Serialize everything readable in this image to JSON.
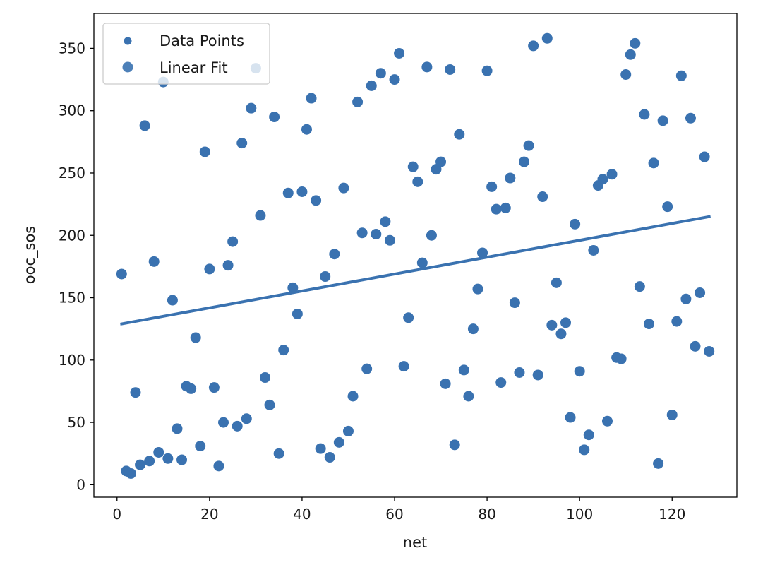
{
  "chart_data": {
    "type": "scatter",
    "title": "",
    "xlabel": "net",
    "ylabel": "ooc_sos",
    "xlim": [
      -5,
      134
    ],
    "ylim": [
      -10,
      378
    ],
    "x_ticks": [
      0,
      20,
      40,
      60,
      80,
      100,
      120
    ],
    "y_ticks": [
      0,
      50,
      100,
      150,
      200,
      250,
      300,
      350
    ],
    "grid": false,
    "legend_position": "top-left",
    "colors": {
      "points": "#3a72b0",
      "fit": "#3a72b0",
      "axes": "#000000",
      "legend_border": "#cccccc"
    },
    "series": [
      {
        "name": "Data Points",
        "kind": "scatter",
        "points": [
          [
            1,
            169
          ],
          [
            2,
            11
          ],
          [
            3,
            9
          ],
          [
            4,
            74
          ],
          [
            5,
            16
          ],
          [
            6,
            288
          ],
          [
            7,
            19
          ],
          [
            8,
            179
          ],
          [
            9,
            26
          ],
          [
            10,
            323
          ],
          [
            11,
            21
          ],
          [
            12,
            148
          ],
          [
            13,
            45
          ],
          [
            14,
            20
          ],
          [
            15,
            79
          ],
          [
            16,
            77
          ],
          [
            17,
            118
          ],
          [
            18,
            31
          ],
          [
            19,
            267
          ],
          [
            20,
            173
          ],
          [
            21,
            78
          ],
          [
            22,
            15
          ],
          [
            23,
            50
          ],
          [
            24,
            176
          ],
          [
            25,
            195
          ],
          [
            26,
            47
          ],
          [
            27,
            274
          ],
          [
            28,
            53
          ],
          [
            29,
            302
          ],
          [
            30,
            334
          ],
          [
            31,
            216
          ],
          [
            32,
            86
          ],
          [
            33,
            64
          ],
          [
            34,
            295
          ],
          [
            35,
            25
          ],
          [
            36,
            108
          ],
          [
            37,
            234
          ],
          [
            38,
            158
          ],
          [
            39,
            137
          ],
          [
            40,
            235
          ],
          [
            41,
            285
          ],
          [
            42,
            310
          ],
          [
            43,
            228
          ],
          [
            44,
            29
          ],
          [
            45,
            167
          ],
          [
            46,
            22
          ],
          [
            47,
            185
          ],
          [
            48,
            34
          ],
          [
            49,
            238
          ],
          [
            50,
            43
          ],
          [
            51,
            71
          ],
          [
            52,
            307
          ],
          [
            53,
            202
          ],
          [
            54,
            93
          ],
          [
            55,
            320
          ],
          [
            56,
            201
          ],
          [
            57,
            330
          ],
          [
            58,
            211
          ],
          [
            59,
            196
          ],
          [
            60,
            325
          ],
          [
            61,
            346
          ],
          [
            62,
            95
          ],
          [
            63,
            134
          ],
          [
            64,
            255
          ],
          [
            65,
            243
          ],
          [
            66,
            178
          ],
          [
            67,
            335
          ],
          [
            68,
            200
          ],
          [
            69,
            253
          ],
          [
            70,
            259
          ],
          [
            71,
            81
          ],
          [
            72,
            333
          ],
          [
            73,
            32
          ],
          [
            74,
            281
          ],
          [
            75,
            92
          ],
          [
            76,
            71
          ],
          [
            77,
            125
          ],
          [
            78,
            157
          ],
          [
            79,
            186
          ],
          [
            80,
            332
          ],
          [
            81,
            239
          ],
          [
            82,
            221
          ],
          [
            83,
            82
          ],
          [
            84,
            222
          ],
          [
            85,
            246
          ],
          [
            86,
            146
          ],
          [
            87,
            90
          ],
          [
            88,
            259
          ],
          [
            89,
            272
          ],
          [
            90,
            352
          ],
          [
            91,
            88
          ],
          [
            92,
            231
          ],
          [
            93,
            358
          ],
          [
            94,
            128
          ],
          [
            95,
            162
          ],
          [
            96,
            121
          ],
          [
            97,
            130
          ],
          [
            98,
            54
          ],
          [
            99,
            209
          ],
          [
            100,
            91
          ],
          [
            101,
            28
          ],
          [
            102,
            40
          ],
          [
            103,
            188
          ],
          [
            104,
            240
          ],
          [
            105,
            245
          ],
          [
            106,
            51
          ],
          [
            107,
            249
          ],
          [
            108,
            102
          ],
          [
            109,
            101
          ],
          [
            110,
            329
          ],
          [
            111,
            345
          ],
          [
            112,
            354
          ],
          [
            113,
            159
          ],
          [
            114,
            297
          ],
          [
            115,
            129
          ],
          [
            116,
            258
          ],
          [
            117,
            17
          ],
          [
            118,
            292
          ],
          [
            119,
            223
          ],
          [
            120,
            56
          ],
          [
            121,
            131
          ],
          [
            122,
            328
          ],
          [
            123,
            149
          ],
          [
            124,
            294
          ],
          [
            125,
            111
          ],
          [
            126,
            154
          ],
          [
            127,
            263
          ],
          [
            128,
            107
          ]
        ]
      },
      {
        "name": "Linear Fit",
        "kind": "line",
        "points": [
          [
            1,
            129
          ],
          [
            128,
            215
          ]
        ]
      }
    ]
  }
}
